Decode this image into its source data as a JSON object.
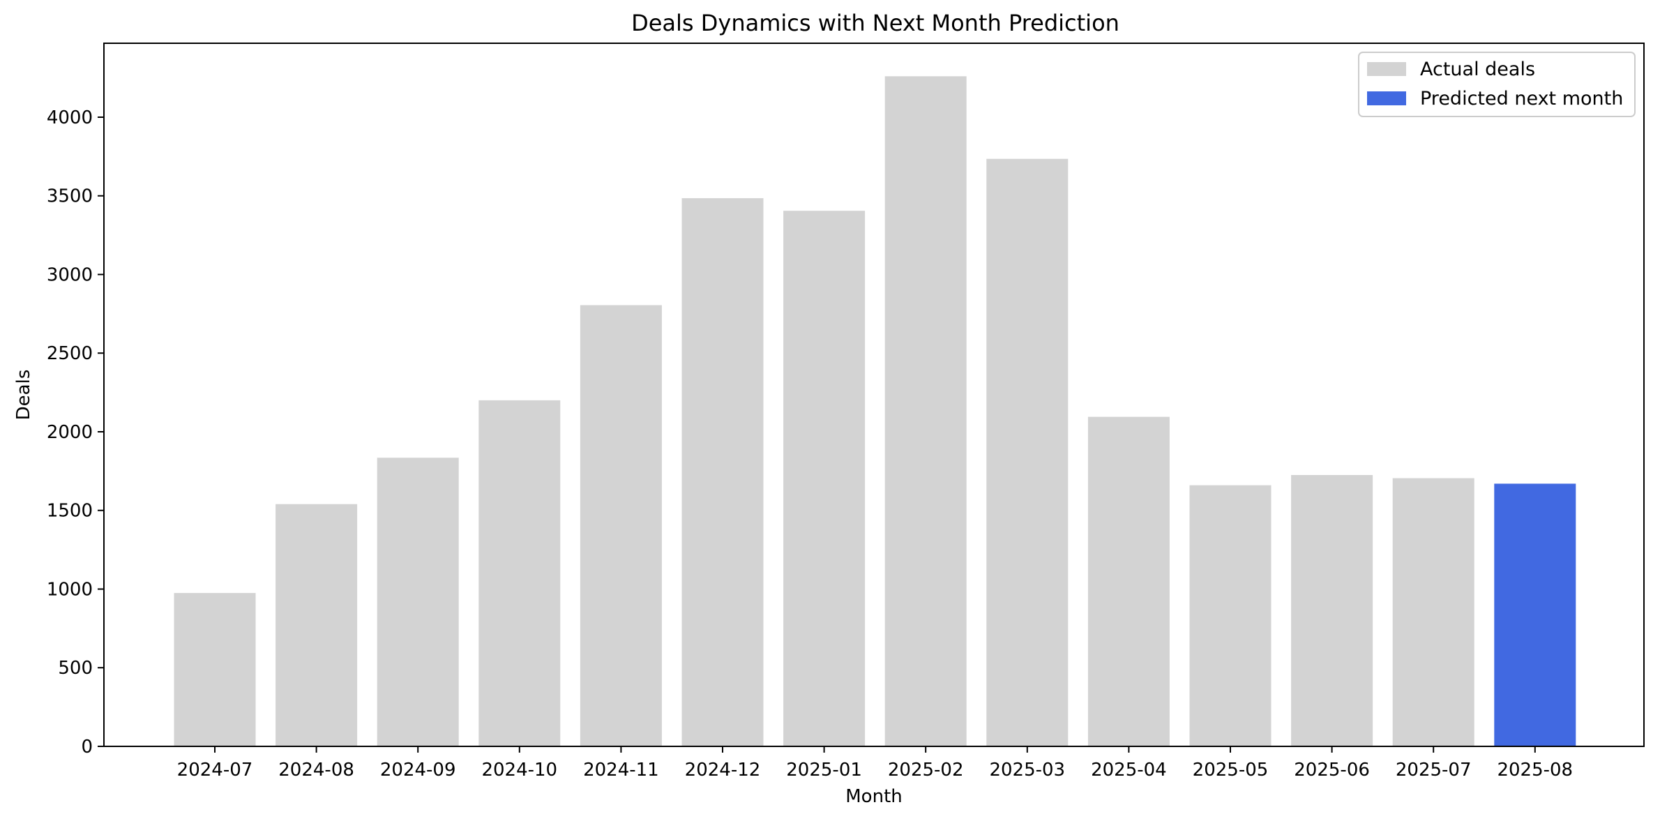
{
  "chart_data": {
    "type": "bar",
    "title": "Deals Dynamics with Next Month Prediction",
    "xlabel": "Month",
    "ylabel": "Deals",
    "categories": [
      "2024-07",
      "2024-08",
      "2024-09",
      "2024-10",
      "2024-11",
      "2024-12",
      "2025-01",
      "2025-02",
      "2025-03",
      "2025-04",
      "2025-05",
      "2025-06",
      "2025-07",
      "2025-08"
    ],
    "ylim": [
      0,
      4470
    ],
    "yticks": [
      0,
      500,
      1000,
      1500,
      2000,
      2500,
      3000,
      3500,
      4000
    ],
    "grid": false,
    "legend_position": "top-right",
    "series": [
      {
        "name": "Actual deals",
        "color": "#d3d3d3",
        "values": [
          975,
          1540,
          1835,
          2200,
          2805,
          3485,
          3405,
          4260,
          3735,
          2095,
          1660,
          1725,
          1705,
          null
        ]
      },
      {
        "name": "Predicted next month",
        "color": "#4169e1",
        "values": [
          null,
          null,
          null,
          null,
          null,
          null,
          null,
          null,
          null,
          null,
          null,
          null,
          null,
          1670
        ]
      }
    ]
  }
}
